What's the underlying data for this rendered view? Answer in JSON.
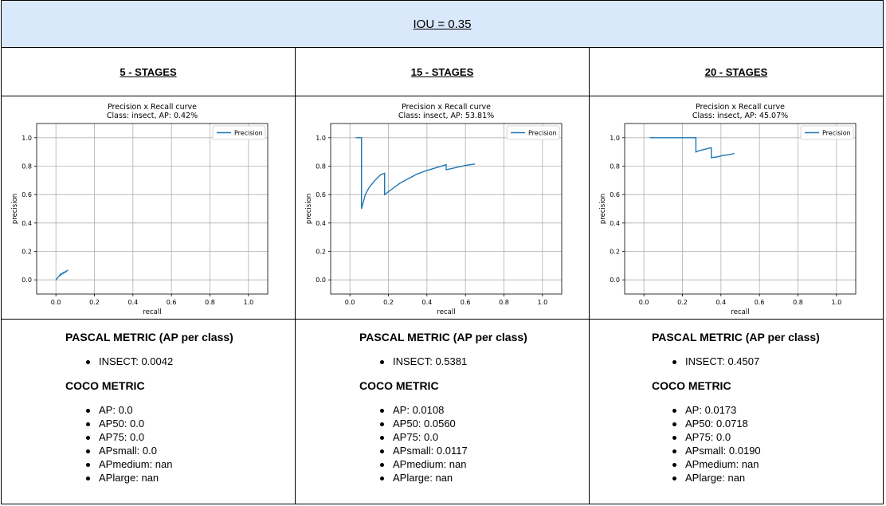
{
  "header": {
    "title": "IOU = 0.35"
  },
  "columns": [
    {
      "title": "5 - STAGES",
      "pascal_heading": "PASCAL METRIC (AP per class)",
      "pascal_items": [
        "INSECT: 0.0042"
      ],
      "coco_heading": "COCO METRIC",
      "coco_items": [
        "AP: 0.0",
        "AP50: 0.0",
        "AP75: 0.0",
        "APsmall: 0.0",
        "APmedium: nan",
        "APlarge: nan"
      ]
    },
    {
      "title": "15 - STAGES",
      "pascal_heading": "PASCAL METRIC (AP per class)",
      "pascal_items": [
        "INSECT: 0.5381"
      ],
      "coco_heading": "COCO METRIC",
      "coco_items": [
        "AP: 0.0108",
        "AP50: 0.0560",
        "AP75: 0.0",
        "APsmall: 0.0117",
        "APmedium: nan",
        "APlarge: nan"
      ]
    },
    {
      "title": "20 - STAGES",
      "pascal_heading": "PASCAL METRIC (AP per class)",
      "pascal_items": [
        "INSECT: 0.4507"
      ],
      "coco_heading": "COCO METRIC",
      "coco_items": [
        "AP: 0.0173",
        "AP50: 0.0718",
        "AP75: 0.0",
        "APsmall: 0.0190",
        "APmedium: nan",
        "APlarge: nan"
      ]
    }
  ],
  "chart_data": [
    {
      "type": "line",
      "title": "Precision x Recall curve",
      "subtitle": "Class: insect, AP: 0.42%",
      "xlabel": "recall",
      "ylabel": "precision",
      "xlim": [
        -0.1,
        1.1
      ],
      "ylim": [
        -0.1,
        1.1
      ],
      "xticks": [
        "0.0",
        "0.2",
        "0.4",
        "0.6",
        "0.8",
        "1.0"
      ],
      "yticks": [
        "0.0",
        "0.2",
        "0.4",
        "0.6",
        "0.8",
        "1.0"
      ],
      "grid": true,
      "legend_position": "top-right",
      "series": [
        {
          "name": "Precision",
          "color": "#1f77b4",
          "x": [
            0.0,
            0.012,
            0.012,
            0.025,
            0.025,
            0.037,
            0.037,
            0.05,
            0.05,
            0.062
          ],
          "y": [
            0.0,
            0.02,
            0.02,
            0.04,
            0.033,
            0.05,
            0.045,
            0.058,
            0.055,
            0.07
          ]
        }
      ]
    },
    {
      "type": "line",
      "title": "Precision x Recall curve",
      "subtitle": "Class: insect, AP: 53.81%",
      "xlabel": "recall",
      "ylabel": "precision",
      "xlim": [
        -0.1,
        1.1
      ],
      "ylim": [
        -0.1,
        1.1
      ],
      "xticks": [
        "0.0",
        "0.2",
        "0.4",
        "0.6",
        "0.8",
        "1.0"
      ],
      "yticks": [
        "0.0",
        "0.2",
        "0.4",
        "0.6",
        "0.8",
        "1.0"
      ],
      "grid": true,
      "legend_position": "top-right",
      "series": [
        {
          "name": "Precision",
          "color": "#1f77b4",
          "x": [
            0.03,
            0.06,
            0.06,
            0.08,
            0.1,
            0.13,
            0.16,
            0.18,
            0.18,
            0.22,
            0.26,
            0.3,
            0.35,
            0.4,
            0.45,
            0.5,
            0.5,
            0.55,
            0.6,
            0.65
          ],
          "y": [
            1.0,
            1.0,
            0.5,
            0.6,
            0.65,
            0.7,
            0.74,
            0.75,
            0.6,
            0.64,
            0.68,
            0.71,
            0.745,
            0.77,
            0.79,
            0.81,
            0.775,
            0.79,
            0.805,
            0.815
          ]
        }
      ]
    },
    {
      "type": "line",
      "title": "Precision x Recall curve",
      "subtitle": "Class: insect, AP: 45.07%",
      "xlabel": "recall",
      "ylabel": "precision",
      "xlim": [
        -0.1,
        1.1
      ],
      "ylim": [
        -0.1,
        1.1
      ],
      "xticks": [
        "0.0",
        "0.2",
        "0.4",
        "0.6",
        "0.8",
        "1.0"
      ],
      "yticks": [
        "0.0",
        "0.2",
        "0.4",
        "0.6",
        "0.8",
        "1.0"
      ],
      "grid": true,
      "legend_position": "top-right",
      "series": [
        {
          "name": "Precision",
          "color": "#1f77b4",
          "x": [
            0.03,
            0.27,
            0.27,
            0.29,
            0.32,
            0.35,
            0.35,
            0.38,
            0.41,
            0.44,
            0.47
          ],
          "y": [
            1.0,
            1.0,
            0.9,
            0.91,
            0.92,
            0.93,
            0.86,
            0.865,
            0.875,
            0.88,
            0.89
          ]
        }
      ]
    }
  ]
}
